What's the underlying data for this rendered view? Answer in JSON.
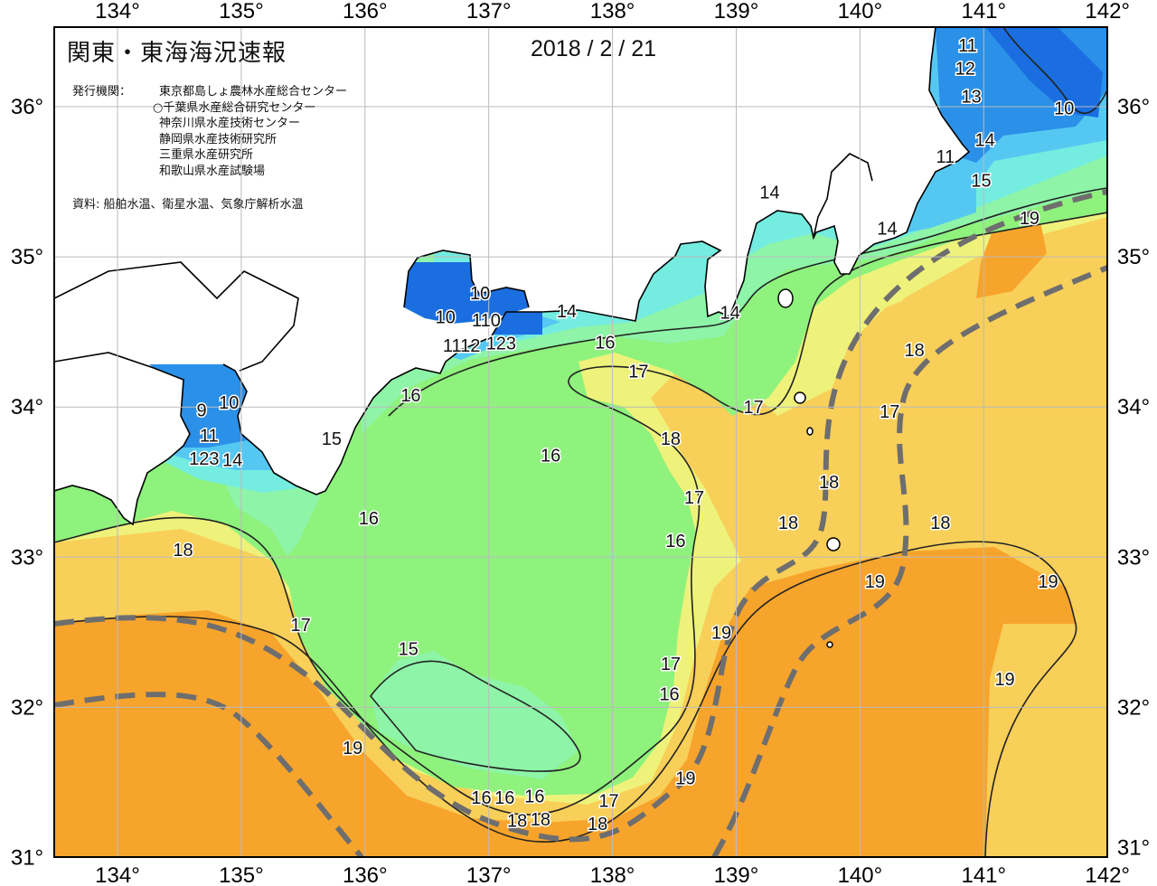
{
  "header": {
    "title": "関東・東海海況速報",
    "date": "2018 / 2 / 21",
    "issuer_label": "発行機関：",
    "issuers": [
      "東京都島しょ農林水産総合センター",
      "○千葉県水産総合研究センター",
      "神奈川県水産技術センター",
      "静岡県水産技術研究所",
      "三重県水産研究所",
      "和歌山県水産試験場"
    ],
    "source": "資料: 船舶水温、衛星水温、気象庁解析水温"
  },
  "axes": {
    "longitude_labels": [
      "134°",
      "135°",
      "136°",
      "137°",
      "138°",
      "139°",
      "140°",
      "141°",
      "142°"
    ],
    "latitude_labels": [
      "36°",
      "35°",
      "34°",
      "33°",
      "32°",
      "31°"
    ],
    "lon_range": [
      134,
      142
    ],
    "lat_range": [
      31,
      36
    ]
  },
  "legend_colors": {
    "9-10": "#1a6ee0",
    "11": "#2a90e8",
    "12-13": "#55c8f2",
    "14": "#74ece0",
    "15": "#8ef4a8",
    "16": "#8ef27c",
    "17": "#eef27a",
    "18": "#f8cf58",
    "19": "#f7a42c",
    "land": "#ffffff",
    "kuroshio_axis": "#6e6e6e"
  },
  "contour_labels": [
    {
      "text": "11",
      "lon": 140.87,
      "lat": 36.4
    },
    {
      "text": "12",
      "lon": 140.85,
      "lat": 36.26
    },
    {
      "text": "13",
      "lon": 140.9,
      "lat": 36.06
    },
    {
      "text": "10",
      "lon": 141.65,
      "lat": 35.98
    },
    {
      "text": "14",
      "lon": 141.01,
      "lat": 35.77
    },
    {
      "text": "11",
      "lon": 140.69,
      "lat": 35.66
    },
    {
      "text": "15",
      "lon": 140.98,
      "lat": 35.5
    },
    {
      "text": "19",
      "lon": 141.37,
      "lat": 35.25
    },
    {
      "text": "14",
      "lon": 139.27,
      "lat": 35.42
    },
    {
      "text": "14",
      "lon": 140.22,
      "lat": 35.18
    },
    {
      "text": "10",
      "lon": 136.93,
      "lat": 34.75
    },
    {
      "text": "10",
      "lon": 136.65,
      "lat": 34.59
    },
    {
      "text": "110",
      "lon": 136.98,
      "lat": 34.57
    },
    {
      "text": "123",
      "lon": 137.1,
      "lat": 34.47
    },
    {
      "text": "1112",
      "lon": 136.78,
      "lat": 34.4
    },
    {
      "text": "14",
      "lon": 137.63,
      "lat": 34.63
    },
    {
      "text": "14",
      "lon": 138.95,
      "lat": 34.62
    },
    {
      "text": "16",
      "lon": 137.94,
      "lat": 34.42
    },
    {
      "text": "17",
      "lon": 138.21,
      "lat": 34.23
    },
    {
      "text": "16",
      "lon": 136.37,
      "lat": 34.07
    },
    {
      "text": "10",
      "lon": 134.9,
      "lat": 34.02
    },
    {
      "text": "9",
      "lon": 134.68,
      "lat": 33.97
    },
    {
      "text": "11",
      "lon": 134.74,
      "lat": 33.8
    },
    {
      "text": "123",
      "lon": 134.7,
      "lat": 33.71
    },
    {
      "text": "14",
      "lon": 134.76,
      "lat": 33.64
    },
    {
      "text": "15",
      "lon": 135.73,
      "lat": 33.78
    },
    {
      "text": "16",
      "lon": 137.5,
      "lat": 33.67
    },
    {
      "text": "17",
      "lon": 139.14,
      "lat": 33.99
    },
    {
      "text": "18",
      "lon": 138.47,
      "lat": 33.78
    },
    {
      "text": "17",
      "lon": 140.24,
      "lat": 33.96
    },
    {
      "text": "18",
      "lon": 140.44,
      "lat": 34.37
    },
    {
      "text": "18",
      "lon": 139.75,
      "lat": 33.49
    },
    {
      "text": "17",
      "lon": 138.66,
      "lat": 33.39
    },
    {
      "text": "18",
      "lon": 139.42,
      "lat": 33.22
    },
    {
      "text": "18",
      "lon": 140.65,
      "lat": 33.22
    },
    {
      "text": "16",
      "lon": 138.51,
      "lat": 33.1
    },
    {
      "text": "16",
      "lon": 136.03,
      "lat": 33.25
    },
    {
      "text": "18",
      "lon": 134.53,
      "lat": 33.04
    },
    {
      "text": "19",
      "lon": 140.12,
      "lat": 32.83
    },
    {
      "text": "19",
      "lon": 141.52,
      "lat": 32.83
    },
    {
      "text": "17",
      "lon": 135.48,
      "lat": 32.54
    },
    {
      "text": "19",
      "lon": 138.88,
      "lat": 32.49
    },
    {
      "text": "15",
      "lon": 136.35,
      "lat": 32.38
    },
    {
      "text": "17",
      "lon": 138.47,
      "lat": 32.28
    },
    {
      "text": "16",
      "lon": 138.46,
      "lat": 32.08
    },
    {
      "text": "19",
      "lon": 141.17,
      "lat": 32.18
    },
    {
      "text": "19",
      "lon": 135.9,
      "lat": 31.72
    },
    {
      "text": "19",
      "lon": 138.59,
      "lat": 31.52
    },
    {
      "text": "16",
      "lon": 136.94,
      "lat": 31.39
    },
    {
      "text": "16",
      "lon": 137.1,
      "lat": 31.39
    },
    {
      "text": "16",
      "lon": 137.37,
      "lat": 31.4
    },
    {
      "text": "17",
      "lon": 137.97,
      "lat": 31.37
    },
    {
      "text": "18",
      "lon": 137.23,
      "lat": 31.25
    },
    {
      "text": "18",
      "lon": 137.37,
      "lat": 31.25
    },
    {
      "text": "18",
      "lon": 137.88,
      "lat": 31.26
    }
  ]
}
